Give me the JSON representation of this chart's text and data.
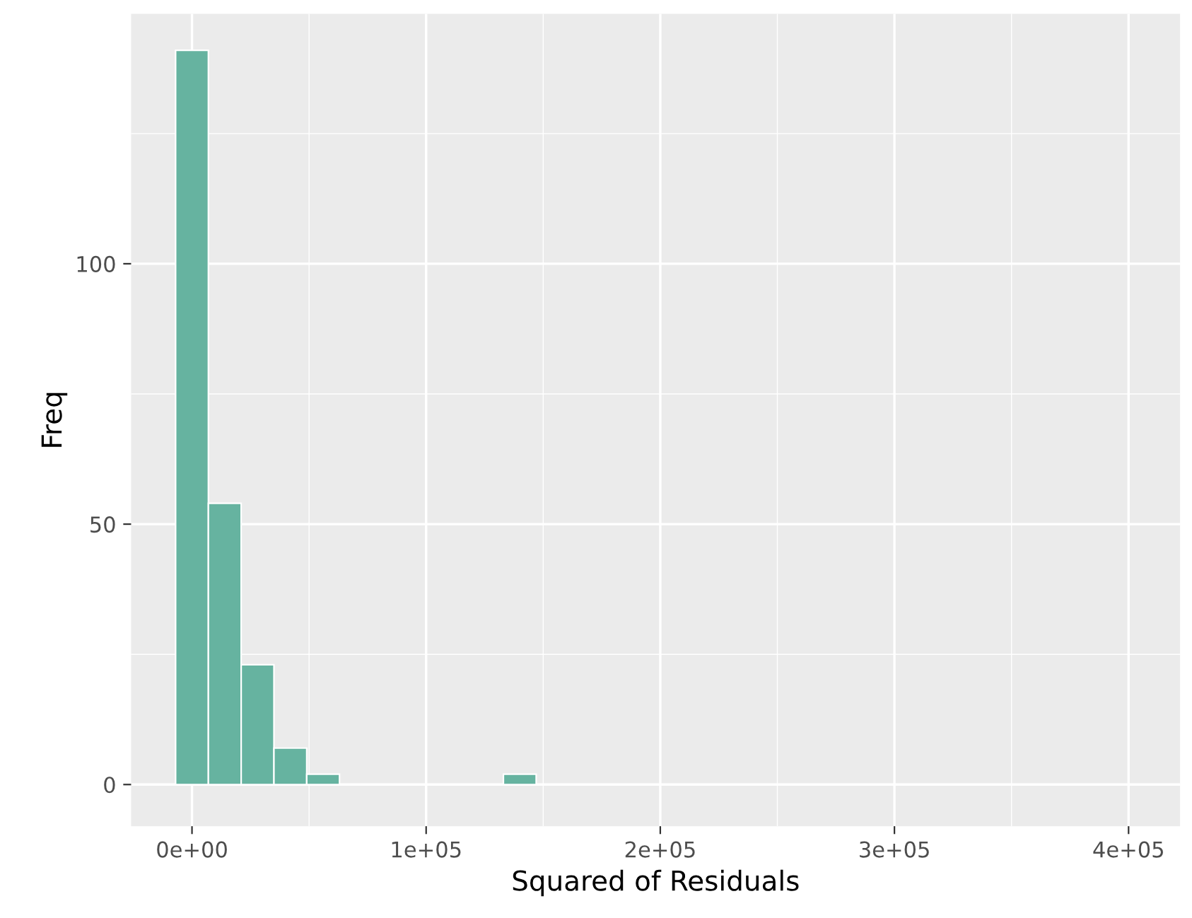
{
  "chart_data": {
    "type": "histogram",
    "xlabel": "Squared of Residuals",
    "ylabel": "Freq",
    "color": "#66b3a0",
    "bins": [
      -7000,
      7000,
      21000,
      35000,
      49000,
      63000,
      77000,
      91000,
      105000,
      119000,
      133000,
      147000,
      161000,
      175000,
      189000,
      203000,
      217000,
      231000,
      245000,
      259000,
      273000,
      287000,
      301000,
      315000,
      329000,
      343000,
      357000,
      371000,
      385000,
      399000,
      413000
    ],
    "values": [
      141,
      54,
      23,
      7,
      2,
      0,
      0,
      0,
      0,
      0,
      2,
      0,
      0,
      0,
      0,
      0,
      0,
      0,
      0,
      0,
      0,
      0,
      0,
      0,
      0,
      0,
      0,
      0,
      0,
      0
    ],
    "xlim": [
      -26000,
      422000
    ],
    "xticks": [
      {
        "value": 0,
        "label": "0e+00"
      },
      {
        "value": 100000,
        "label": "1e+05"
      },
      {
        "value": 200000,
        "label": "2e+05"
      },
      {
        "value": 300000,
        "label": "3e+05"
      },
      {
        "value": 400000,
        "label": "4e+05"
      }
    ],
    "ylim": [
      -8,
      148
    ],
    "yticks": [
      0,
      50,
      100
    ],
    "grid": true
  }
}
